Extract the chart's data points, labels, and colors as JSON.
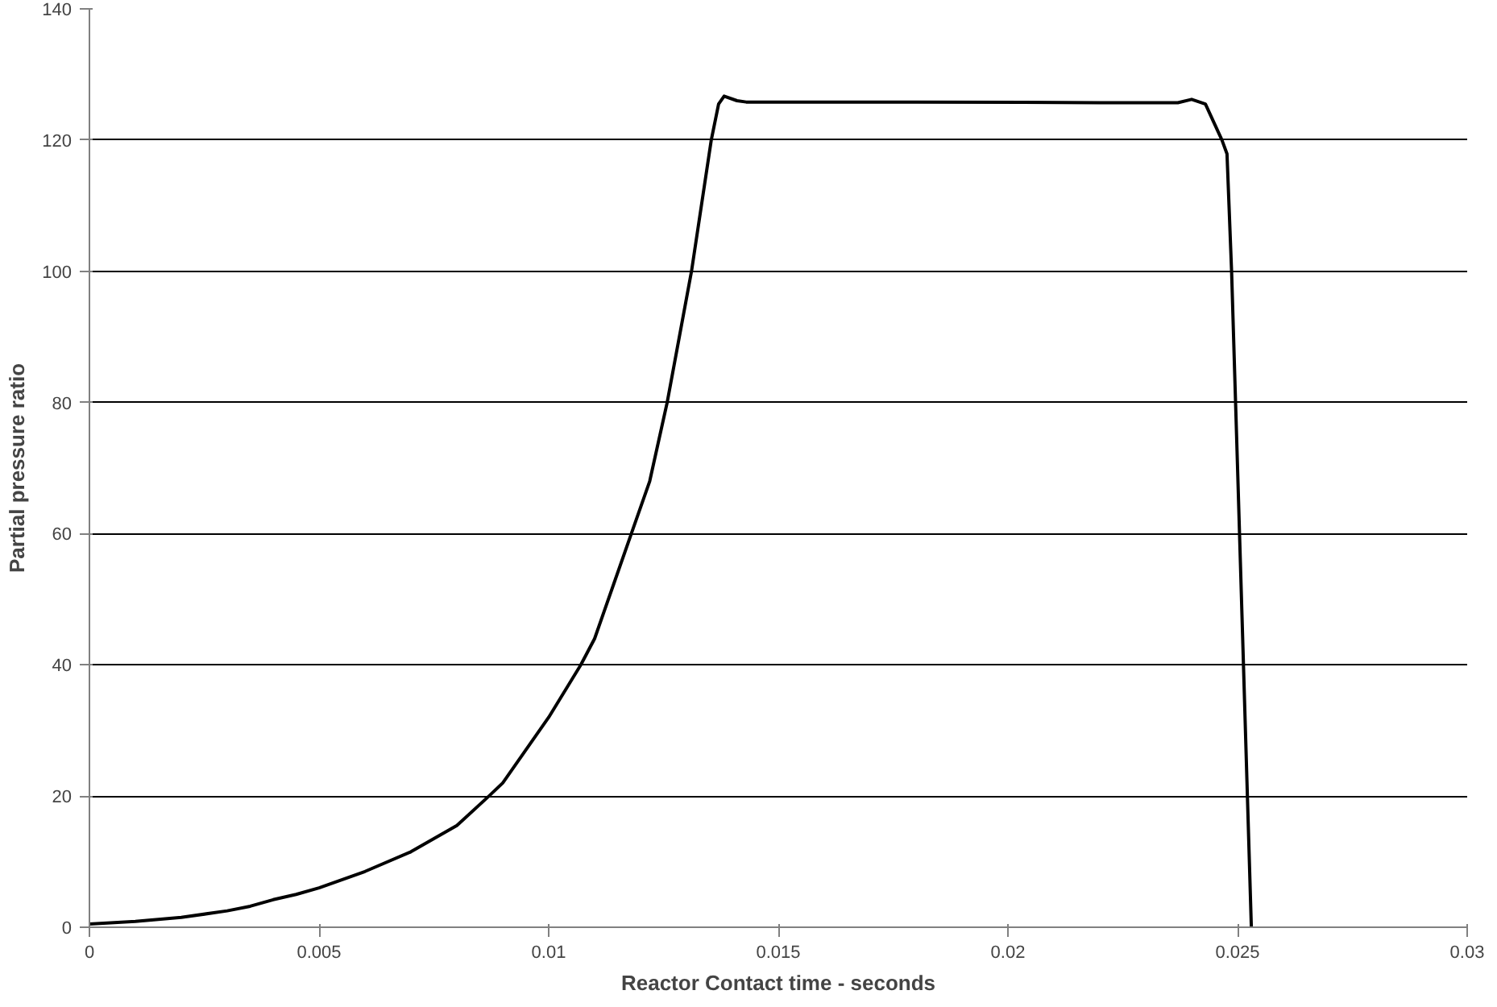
{
  "chart_data": {
    "type": "line",
    "xlabel": "Reactor Contact time - seconds",
    "ylabel": "Partial pressure ratio",
    "x": [
      0,
      0.001,
      0.002,
      0.003,
      0.0035,
      0.004,
      0.0045,
      0.005,
      0.006,
      0.007,
      0.008,
      0.0087,
      0.009,
      0.01,
      0.0107,
      0.011,
      0.0118,
      0.0122,
      0.01258,
      0.01311,
      0.01354,
      0.0137,
      0.01382,
      0.0141,
      0.0143,
      0.018,
      0.022,
      0.0237,
      0.024,
      0.0243,
      0.02466,
      0.02477,
      0.02487,
      0.025,
      0.0253
    ],
    "series": [
      {
        "color": "#000000",
        "values": [
          0.5,
          0.9,
          1.5,
          2.5,
          3.2,
          4.2,
          5,
          6,
          8.5,
          11.5,
          15.5,
          20,
          22,
          32,
          40,
          44,
          60,
          68,
          80,
          100,
          120,
          125.5,
          126.7,
          126,
          125.8,
          125.8,
          125.7,
          125.7,
          126.2,
          125.5,
          120,
          117.9,
          100,
          70,
          0
        ]
      }
    ],
    "xlim": [
      0,
      0.03
    ],
    "ylim": [
      0,
      140
    ],
    "xticks": [
      0,
      0.005,
      0.01,
      0.015,
      0.02,
      0.025,
      0.03
    ],
    "yticks": [
      0,
      20,
      40,
      60,
      80,
      100,
      120,
      140
    ],
    "grid": "y",
    "marker": "none",
    "line_style": "solid"
  }
}
